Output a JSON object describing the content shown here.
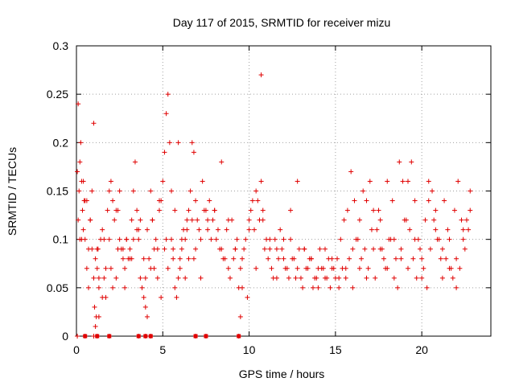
{
  "chart_data": {
    "type": "scatter",
    "title": "Day 117 of 2015, SRMTID for receiver mizu",
    "xlabel": "GPS time / hours",
    "ylabel": "SRMTID / TECUs",
    "xlim": [
      0,
      24
    ],
    "ylim": [
      0,
      0.3
    ],
    "xticks": [
      0,
      5,
      10,
      15,
      20
    ],
    "yticks": [
      0,
      0.05,
      0.1,
      0.15,
      0.2,
      0.25,
      0.3
    ],
    "xtick_labels": [
      "0",
      "5",
      "10",
      "15",
      "20"
    ],
    "ytick_labels": [
      "0",
      "0.05",
      "0.1",
      "0.15",
      "0.2",
      "0.25",
      "0.3"
    ],
    "grid": true,
    "marker": "+",
    "marker_color": "#e00000",
    "series": [
      {
        "name": "SRMTID",
        "x": [
          0.05,
          0.1,
          0.15,
          0.2,
          0.25,
          0.3,
          0.35,
          0.4,
          0.45,
          0.5,
          0.6,
          0.7,
          0.8,
          0.9,
          1.0,
          1.05,
          1.1,
          1.15,
          1.2,
          1.25,
          1.3,
          1.4,
          1.5,
          1.6,
          1.7,
          1.8,
          1.9,
          2.0,
          2.1,
          2.2,
          2.3,
          2.4,
          2.5,
          2.6,
          2.7,
          2.8,
          2.9,
          3.0,
          3.1,
          3.2,
          3.3,
          3.4,
          3.5,
          3.6,
          3.7,
          3.8,
          3.9,
          4.0,
          4.1,
          4.2,
          4.3,
          4.4,
          4.5,
          4.6,
          4.7,
          4.8,
          4.9,
          5.0,
          5.1,
          5.2,
          5.3,
          5.4,
          5.5,
          5.6,
          5.7,
          5.8,
          5.9,
          6.0,
          6.1,
          6.2,
          6.3,
          6.4,
          6.5,
          6.6,
          6.7,
          6.8,
          6.9,
          7.0,
          7.2,
          7.4,
          7.6,
          7.8,
          8.0,
          8.2,
          8.4,
          8.6,
          8.8,
          9.0,
          9.2,
          9.4,
          9.5,
          9.6,
          9.8,
          10.0,
          10.2,
          10.4,
          10.6,
          10.7,
          10.8,
          11.0,
          11.2,
          11.4,
          11.6,
          11.8,
          12.0,
          12.2,
          12.4,
          12.6,
          12.8,
          13.0,
          13.2,
          13.4,
          13.6,
          13.8,
          14.0,
          14.2,
          14.4,
          14.6,
          14.8,
          15.0,
          15.2,
          15.4,
          15.6,
          15.8,
          16.0,
          16.2,
          16.4,
          16.6,
          16.8,
          17.0,
          17.2,
          17.4,
          17.6,
          17.8,
          18.0,
          18.2,
          18.4,
          18.6,
          18.8,
          19.0,
          19.2,
          19.4,
          19.6,
          19.8,
          20.0,
          20.2,
          20.4,
          20.6,
          20.8,
          21.0,
          21.2,
          21.4,
          21.6,
          21.8,
          22.0,
          22.2,
          22.4,
          22.6,
          22.8,
          0.2,
          0.4,
          0.6,
          0.8,
          1.0,
          1.2,
          1.6,
          2.0,
          2.4,
          2.8,
          3.2,
          3.6,
          4.0,
          4.4,
          4.8,
          5.2,
          5.6,
          6.0,
          6.4,
          6.8,
          7.2,
          7.6,
          8.0,
          8.4,
          8.8,
          9.2,
          9.6,
          10.0,
          10.4,
          10.8,
          11.2,
          11.6,
          12.0,
          12.4,
          12.8,
          13.2,
          13.6,
          14.0,
          14.4,
          14.8,
          15.2,
          15.6,
          16.0,
          16.4,
          16.8,
          17.2,
          17.6,
          18.0,
          18.4,
          18.8,
          19.2,
          19.6,
          20.0,
          20.4,
          20.8,
          21.2,
          21.6,
          22.0,
          22.4,
          22.8,
          0.1,
          0.3,
          0.5,
          0.7,
          0.9,
          1.1,
          1.3,
          1.5,
          1.7,
          1.9,
          2.1,
          2.3,
          2.5,
          2.7,
          2.9,
          3.1,
          3.3,
          3.5,
          3.7,
          3.9,
          4.1,
          4.3,
          4.5,
          4.7,
          4.9,
          5.1,
          5.3,
          5.5,
          5.7,
          5.9,
          6.1,
          6.3,
          6.5,
          6.7,
          6.9,
          7.1,
          7.3,
          7.5,
          7.7,
          7.9,
          8.1,
          8.3,
          8.5,
          8.7,
          8.9,
          9.1,
          9.3,
          9.5,
          9.7,
          9.9,
          10.1,
          10.3,
          10.5,
          10.7,
          10.9,
          11.1,
          11.3,
          11.5,
          11.7,
          11.9,
          12.1,
          12.3,
          12.5,
          12.7,
          12.9,
          13.1,
          13.3,
          13.5,
          13.7,
          13.9,
          14.1,
          14.3,
          14.5,
          14.7,
          14.9,
          15.1,
          15.3,
          15.5,
          15.7,
          15.9,
          16.1,
          16.3,
          16.5,
          16.7,
          16.9,
          17.1,
          17.3,
          17.5,
          17.7,
          17.9,
          18.1,
          18.3,
          18.5,
          18.7,
          18.9,
          19.1,
          19.3,
          19.5,
          19.7,
          19.9,
          20.1,
          20.3,
          20.5,
          20.7,
          20.9,
          21.1,
          21.3,
          21.5,
          21.7,
          21.9,
          22.1,
          22.3,
          22.5,
          22.7,
          0.05,
          0.5,
          1.0,
          1.2,
          1.3,
          1.9,
          3.6,
          4.0,
          4.3,
          6.9,
          7.5,
          9.4
        ],
        "y": [
          0.17,
          0.24,
          0.15,
          0.1,
          0.2,
          0.16,
          0.13,
          0.11,
          0.14,
          0.1,
          0.07,
          0.05,
          0.12,
          0.09,
          0.06,
          0.03,
          0.01,
          0.02,
          0.07,
          0.09,
          0.05,
          0.1,
          0.11,
          0.06,
          0.04,
          0.13,
          0.15,
          0.16,
          0.14,
          0.12,
          0.06,
          0.09,
          0.1,
          0.09,
          0.08,
          0.07,
          0.1,
          0.08,
          0.09,
          0.12,
          0.15,
          0.18,
          0.13,
          0.1,
          0.06,
          0.05,
          0.04,
          0.03,
          0.02,
          0.08,
          0.15,
          0.12,
          0.07,
          0.1,
          0.09,
          0.13,
          0.14,
          0.16,
          0.19,
          0.23,
          0.25,
          0.2,
          0.15,
          0.08,
          0.05,
          0.04,
          0.06,
          0.07,
          0.09,
          0.11,
          0.1,
          0.12,
          0.13,
          0.15,
          0.2,
          0.19,
          0.14,
          0.12,
          0.1,
          0.13,
          0.12,
          0.1,
          0.13,
          0.11,
          0.09,
          0.08,
          0.07,
          0.12,
          0.09,
          0.05,
          0.02,
          0.05,
          0.1,
          0.12,
          0.14,
          0.15,
          0.12,
          0.27,
          0.13,
          0.1,
          0.09,
          0.06,
          0.09,
          0.11,
          0.08,
          0.07,
          0.1,
          0.08,
          0.07,
          0.06,
          0.09,
          0.07,
          0.08,
          0.06,
          0.05,
          0.07,
          0.06,
          0.08,
          0.07,
          0.06,
          0.05,
          0.07,
          0.06,
          0.08,
          0.09,
          0.1,
          0.12,
          0.15,
          0.14,
          0.16,
          0.13,
          0.11,
          0.09,
          0.08,
          0.07,
          0.1,
          0.06,
          0.05,
          0.08,
          0.12,
          0.16,
          0.18,
          0.14,
          0.1,
          0.08,
          0.12,
          0.16,
          0.15,
          0.13,
          0.1,
          0.09,
          0.08,
          0.07,
          0.06,
          0.05,
          0.07,
          0.1,
          0.12,
          0.15,
          0.18,
          0.16,
          0.14,
          0.12,
          0.22,
          0.09,
          0.1,
          0.07,
          0.13,
          0.05,
          0.08,
          0.11,
          0.06,
          0.12,
          0.14,
          0.1,
          0.09,
          0.08,
          0.11,
          0.08,
          0.06,
          0.11,
          0.13,
          0.18,
          0.12,
          0.09,
          0.08,
          0.11,
          0.07,
          0.12,
          0.1,
          0.06,
          0.1,
          0.13,
          0.16,
          0.09,
          0.08,
          0.07,
          0.09,
          0.08,
          0.06,
          0.07,
          0.05,
          0.07,
          0.06,
          0.09,
          0.12,
          0.16,
          0.1,
          0.09,
          0.07,
          0.1,
          0.06,
          0.14,
          0.11,
          0.06,
          0.1,
          0.08,
          0.11,
          0.13,
          0.12,
          0.1,
          0.14,
          0.09,
          0.15,
          0.08,
          0.06,
          0.04,
          0.07,
          0.1,
          0.05,
          0.13,
          0.15,
          0.09,
          0.1,
          0.08,
          0.1,
          0.11,
          0.12,
          0.08,
          0.11,
          0.07,
          0.09,
          0.06,
          0.04,
          0.09,
          0.07,
          0.1,
          0.13,
          0.2,
          0.1,
          0.06,
          0.08,
          0.12,
          0.09,
          0.11,
          0.16,
          0.13,
          0.14,
          0.12,
          0.1,
          0.09,
          0.08,
          0.11,
          0.06,
          0.08,
          0.1,
          0.07,
          0.09,
          0.04,
          0.13,
          0.11,
          0.14,
          0.16,
          0.09,
          0.08,
          0.07,
          0.1,
          0.08,
          0.09,
          0.07,
          0.06,
          0.08,
          0.06,
          0.09,
          0.05,
          0.07,
          0.08,
          0.05,
          0.06,
          0.09,
          0.07,
          0.06,
          0.05,
          0.07,
          0.08,
          0.1,
          0.12,
          0.13,
          0.17,
          0.14,
          0.1,
          0.08,
          0.09,
          0.07,
          0.11,
          0.06,
          0.13,
          0.09,
          0.07,
          0.1,
          0.14,
          0.08,
          0.18,
          0.16,
          0.12,
          0.11,
          0.08,
          0.06,
          0.09,
          0.07,
          0.05,
          0.09,
          0.12,
          0.1,
          0.08,
          0.14,
          0.11,
          0.07,
          0.13,
          0.16,
          0.12,
          0.09,
          0.11,
          0.0,
          0.0,
          0.0,
          0.0,
          0.02,
          0.0,
          0.0,
          0.0,
          0.0,
          0.0,
          0.0,
          0.0
        ]
      }
    ],
    "baseline_markers_x": [
      0.5,
      1.2,
      1.9,
      3.6,
      4.0,
      4.3,
      6.9,
      7.5,
      9.4
    ]
  }
}
